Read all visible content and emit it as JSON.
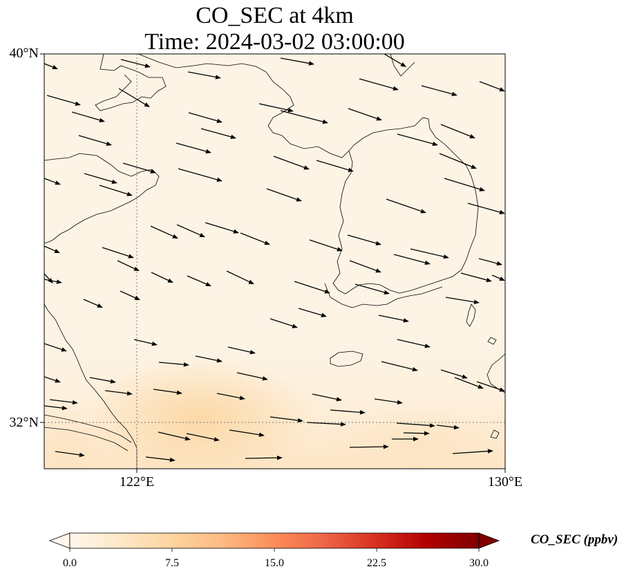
{
  "title": {
    "line1": "CO_SEC at 4km",
    "line2": "Time: 2024-03-02 03:00:00"
  },
  "map": {
    "extent": {
      "lon": [
        120,
        130
      ],
      "lat": [
        31,
        40
      ]
    },
    "gridlines": {
      "lon": [
        122
      ],
      "lat": [
        32
      ]
    },
    "y_ticks": [
      "40°N",
      "32°N"
    ],
    "x_ticks": [
      "122°E",
      "130°E"
    ],
    "field_color_base": "#fdf4e6",
    "vector_color": "#000000",
    "coastline_color": "#000000"
  },
  "colorbar": {
    "label": "CO_SEC (ppbv)",
    "ticks": [
      "0.0",
      "7.5",
      "15.0",
      "22.5",
      "30.0"
    ],
    "range": [
      0,
      30
    ],
    "cmap": [
      "#fff7ec",
      "#fee8c8",
      "#fdd49e",
      "#fdbb84",
      "#fc8d59",
      "#ef6548",
      "#d7301f",
      "#b30000",
      "#7f0000"
    ],
    "extend": "both"
  }
}
